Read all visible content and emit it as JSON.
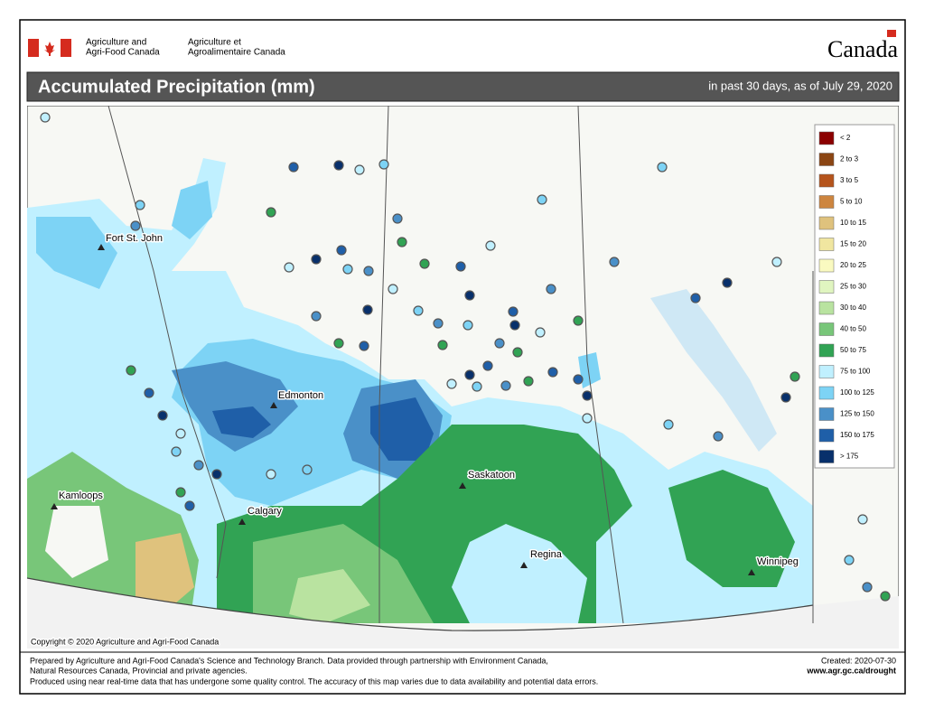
{
  "header": {
    "department_en": [
      "Agriculture and",
      "Agri-Food Canada"
    ],
    "department_fr": [
      "Agriculture et",
      "Agroalimentaire Canada"
    ],
    "wordmark": "Canada"
  },
  "title": "Accumulated Precipitation (mm)",
  "subtitle": "in past 30 days, as of July 29, 2020",
  "legend": [
    {
      "label": "< 2",
      "color": "#8b0000"
    },
    {
      "label": "2 to 3",
      "color": "#8b4513"
    },
    {
      "label": "3 to 5",
      "color": "#b5541c"
    },
    {
      "label": "5 to 10",
      "color": "#cd853f"
    },
    {
      "label": "10 to 15",
      "color": "#dfc27d"
    },
    {
      "label": "15 to 20",
      "color": "#f0e6a0"
    },
    {
      "label": "20 to 25",
      "color": "#fafac0"
    },
    {
      "label": "25 to 30",
      "color": "#e0f5c0"
    },
    {
      "label": "30 to 40",
      "color": "#b9e3a0"
    },
    {
      "label": "40 to 50",
      "color": "#78c679"
    },
    {
      "label": "50 to 75",
      "color": "#31a354"
    },
    {
      "label": "75 to 100",
      "color": "#c0f0ff"
    },
    {
      "label": "100 to 125",
      "color": "#7dd3f5"
    },
    {
      "label": "125 to 150",
      "color": "#4a90c8"
    },
    {
      "label": "150 to 175",
      "color": "#1f5fa8"
    },
    {
      "label": "> 175",
      "color": "#08306b"
    }
  ],
  "cities": [
    "Fort St. John",
    "Edmonton",
    "Kamloops",
    "Calgary",
    "Saskatoon",
    "Regina",
    "Winnipeg"
  ],
  "copyright": "Copyright © 2020 Agriculture and Agri-Food Canada",
  "footer": {
    "notes": [
      "Prepared by Agriculture and Agri-Food Canada's Science and Technology Branch. Data provided through partnership with Environment Canada,",
      "Natural Resources Canada, Provincial and private agencies.",
      "Produced using near real-time data that has undergone some quality control. The accuracy of this map varies due to data availability and potential data errors."
    ],
    "created": "Created: 2020-07-30",
    "url": "www.agr.gc.ca/drought"
  }
}
